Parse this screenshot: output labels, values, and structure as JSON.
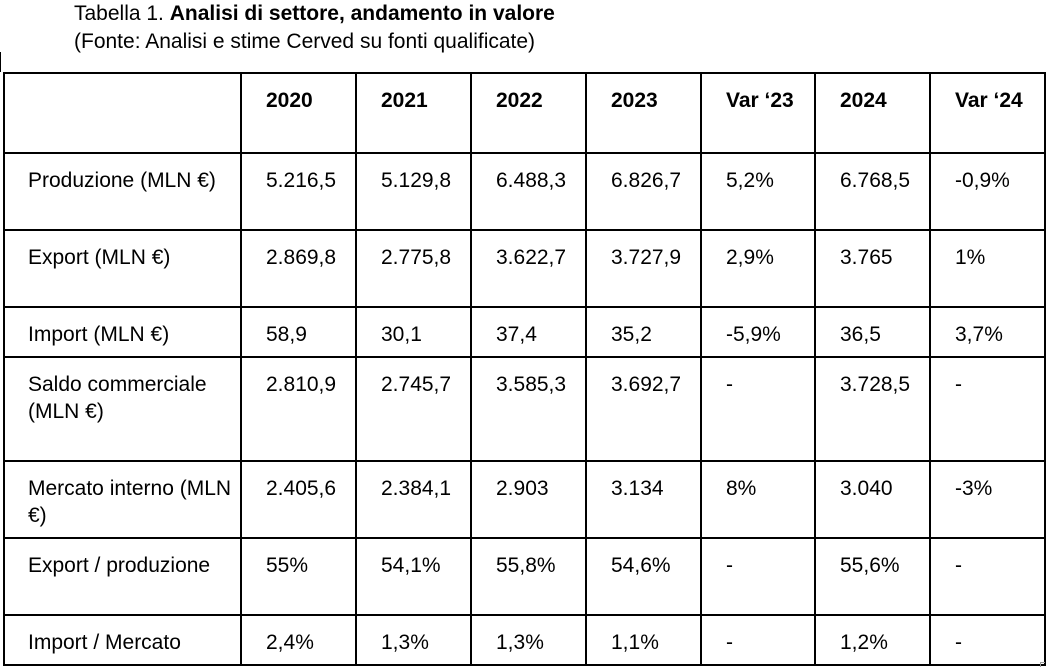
{
  "caption": {
    "prefix": "Tabella 1. ",
    "title": "Analisi di settore, andamento in valore",
    "source": "(Fonte: Analisi e stime Cerved su fonti qualificate)"
  },
  "table": {
    "headers": [
      "",
      "2020",
      "2021",
      "2022",
      "2023",
      "Var ‘23",
      "2024",
      "Var ‘24"
    ],
    "rows": [
      [
        "Produzione (MLN €)",
        "5.216,5",
        "5.129,8",
        "6.488,3",
        "6.826,7",
        "5,2%",
        "6.768,5",
        "-0,9%"
      ],
      [
        "Export (MLN €)",
        "2.869,8",
        "2.775,8",
        "3.622,7",
        "3.727,9",
        "2,9%",
        "3.765",
        "1%"
      ],
      [
        "Import (MLN €)",
        "58,9",
        "30,1",
        "37,4",
        "35,2",
        "-5,9%",
        "36,5",
        "3,7%"
      ],
      [
        "Saldo commerciale (MLN €)",
        "2.810,9",
        "2.745,7",
        "3.585,3",
        "3.692,7",
        "-",
        "3.728,5",
        "-"
      ],
      [
        "Mercato interno (MLN €)",
        "2.405,6",
        "2.384,1",
        "2.903",
        "3.134",
        "8%",
        "3.040",
        "-3%"
      ],
      [
        "Export / produzione",
        "55%",
        "54,1%",
        "55,8%",
        "54,6%",
        "-",
        "55,6%",
        "-"
      ],
      [
        "Import / Mercato",
        "2,4%",
        "1,3%",
        "1,3%",
        "1,1%",
        "-",
        "1,2%",
        "-"
      ]
    ]
  }
}
